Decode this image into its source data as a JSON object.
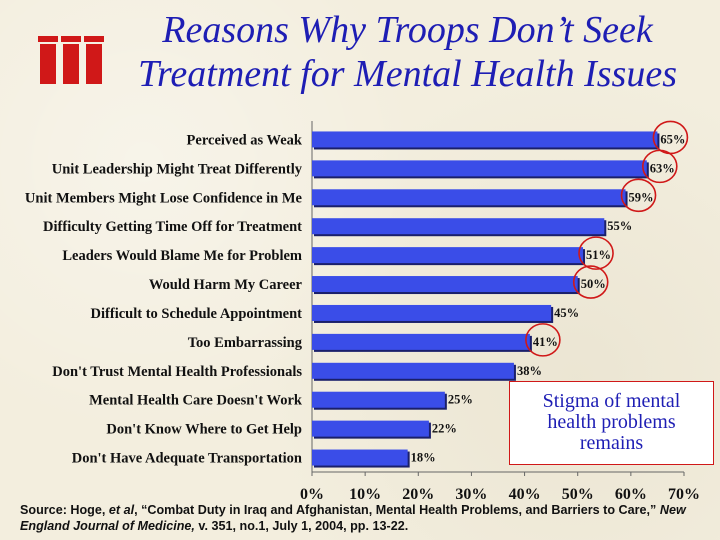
{
  "header": {
    "title_line1": "Reasons Why Troops Don’t Seek",
    "title_line2": "Treatment for Mental Health Issues"
  },
  "chart_data": {
    "type": "bar",
    "orientation": "horizontal",
    "categories": [
      "Perceived as Weak",
      "Unit Leadership Might Treat Differently",
      "Unit Members Might Lose Confidence in Me",
      "Difficulty Getting Time Off for Treatment",
      "Leaders Would Blame Me for Problem",
      "Would Harm My Career",
      "Difficult to Schedule Appointment",
      "Too Embarrassing",
      "Don't Trust Mental Health Professionals",
      "Mental Health Care Doesn't Work",
      "Don't Know Where to Get Help",
      "Don't Have Adequate Transportation"
    ],
    "values": [
      65,
      63,
      59,
      55,
      51,
      50,
      45,
      41,
      38,
      25,
      22,
      18
    ],
    "value_labels": [
      "65%",
      "63%",
      "59%",
      "55%",
      "51%",
      "50%",
      "45%",
      "41%",
      "38%",
      "25%",
      "22%",
      "18%"
    ],
    "circled": [
      true,
      true,
      true,
      false,
      true,
      true,
      false,
      true,
      false,
      false,
      false,
      false
    ],
    "xlim": [
      0,
      70
    ],
    "xticks": [
      "0%",
      "10%",
      "20%",
      "30%",
      "40%",
      "50%",
      "60%",
      "70%"
    ],
    "bar_color": "#3a4de8",
    "circle_color": "#d01818",
    "grid": false
  },
  "callout": {
    "text_line1": "Stigma of mental",
    "text_line2": "health problems",
    "text_line3": "remains"
  },
  "source": {
    "prefix": "Source: Hoge, ",
    "et_al": "et al",
    "middle": ", “Combat Duty in Iraq and Afghanistan, Mental Health Problems, and Barriers to Care,” ",
    "journal": "New England Journal of Medicine,",
    "suffix": " v. 351, no.1, July 1, 2004, pp. 13-22."
  }
}
